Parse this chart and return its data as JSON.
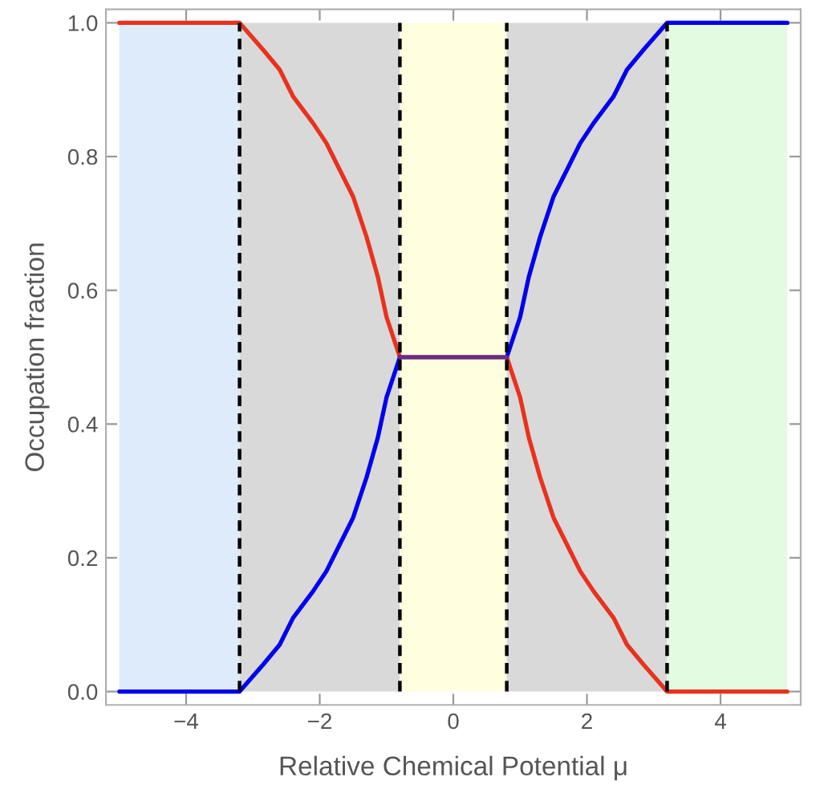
{
  "chart_data": {
    "type": "line",
    "xlabel": "Relative Chemical Potential μ",
    "ylabel": "Occupation fraction",
    "series": [
      {
        "color": "#e8321e",
        "x": [
          -5,
          -3.2,
          -2.85,
          -2.6,
          -2.4,
          -2.1,
          -1.9,
          -1.7,
          -1.5,
          -1.3,
          -1.13,
          -1.0,
          -0.8,
          0,
          0.8,
          1.0,
          1.13,
          1.3,
          1.5,
          1.7,
          1.9,
          2.1,
          2.4,
          2.6,
          2.85,
          3.2,
          5
        ],
        "values": [
          1,
          1,
          0.96,
          0.93,
          0.89,
          0.85,
          0.82,
          0.78,
          0.74,
          0.68,
          0.62,
          0.56,
          0.5,
          null,
          0.5,
          0.44,
          0.38,
          0.32,
          0.26,
          0.22,
          0.18,
          0.15,
          0.11,
          0.07,
          0.04,
          0,
          0
        ]
      },
      {
        "color": "#0000ee",
        "x": [
          -5,
          -3.2,
          -2.85,
          -2.6,
          -2.4,
          -2.1,
          -1.9,
          -1.7,
          -1.5,
          -1.3,
          -1.13,
          -1.0,
          -0.8,
          0,
          0.8,
          1.0,
          1.13,
          1.3,
          1.5,
          1.7,
          1.9,
          2.1,
          2.4,
          2.6,
          2.85,
          3.2,
          5
        ],
        "values": [
          0,
          0,
          0.04,
          0.07,
          0.11,
          0.15,
          0.18,
          0.22,
          0.26,
          0.32,
          0.38,
          0.44,
          0.5,
          null,
          0.5,
          0.56,
          0.62,
          0.68,
          0.74,
          0.78,
          0.82,
          0.85,
          0.89,
          0.93,
          0.96,
          1,
          1
        ]
      },
      {
        "color": "#6b2c80",
        "x": [
          -0.8,
          0.8
        ],
        "values": [
          0.5,
          0.5
        ]
      }
    ],
    "bands": [
      {
        "axis": "x",
        "from": -5,
        "to": -3.2,
        "color": "#ddebfa"
      },
      {
        "axis": "x",
        "from": -3.2,
        "to": -0.8,
        "color": "#d9d9d9"
      },
      {
        "axis": "x",
        "from": -0.8,
        "to": 0.8,
        "color": "#ffffdf"
      },
      {
        "axis": "x",
        "from": 0.8,
        "to": 3.2,
        "color": "#d9d9d9"
      },
      {
        "axis": "x",
        "from": 3.2,
        "to": 5,
        "color": "#e3fbe0"
      }
    ],
    "ref_lines": [
      {
        "axis": "x",
        "value": -3.2,
        "color": "#000000",
        "line_style": "dashed"
      },
      {
        "axis": "x",
        "value": -0.8,
        "color": "#000000",
        "line_style": "dashed"
      },
      {
        "axis": "x",
        "value": 0.8,
        "color": "#000000",
        "line_style": "dashed"
      },
      {
        "axis": "x",
        "value": 3.2,
        "color": "#000000",
        "line_style": "dashed"
      }
    ],
    "xlim": [
      -5.2,
      5.2
    ],
    "ylim": [
      -0.02,
      1.02
    ],
    "xticks": [
      {
        "value": -4,
        "label": "−4"
      },
      {
        "value": -2,
        "label": "−2"
      },
      0,
      2,
      4
    ],
    "yticks": [
      {
        "value": 0,
        "label": "0.0"
      },
      0.2,
      0.4,
      0.6,
      0.8,
      {
        "value": 1,
        "label": "1.0"
      }
    ],
    "grid": false,
    "legend": false,
    "line_style": "solid"
  }
}
